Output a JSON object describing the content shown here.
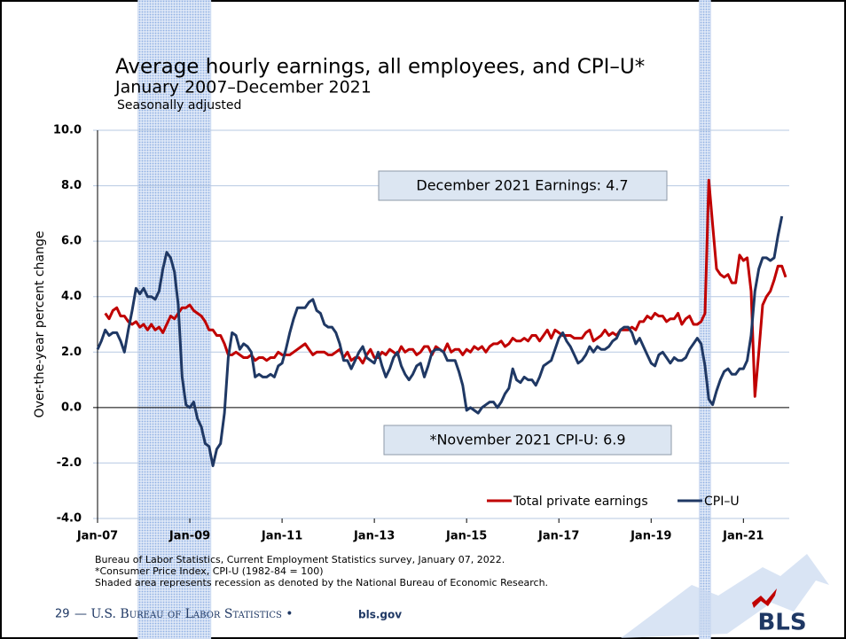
{
  "chart_data": {
    "type": "line",
    "title": "Average hourly earnings, all employees, and CPI–U*",
    "subtitle": "January 2007–December 2021",
    "note": "Seasonally adjusted",
    "y_label": "Over-the-year percent change",
    "categories": [
      "Jan-07",
      null,
      null,
      null,
      null,
      null,
      null,
      null,
      null,
      null,
      null,
      null,
      null,
      null,
      null,
      null,
      null,
      null,
      null,
      null,
      null,
      null,
      null,
      null,
      "Jan-09",
      null,
      null,
      null,
      null,
      null,
      null,
      null,
      null,
      null,
      null,
      null,
      null,
      null,
      null,
      null,
      null,
      null,
      null,
      null,
      null,
      null,
      null,
      null,
      "Jan-11",
      null,
      null,
      null,
      null,
      null,
      null,
      null,
      null,
      null,
      null,
      null,
      null,
      null,
      null,
      null,
      null,
      null,
      null,
      null,
      null,
      null,
      null,
      null,
      "Jan-13",
      null,
      null,
      null,
      null,
      null,
      null,
      null,
      null,
      null,
      null,
      null,
      null,
      null,
      null,
      null,
      null,
      null,
      null,
      null,
      null,
      null,
      null,
      null,
      "Jan-15",
      null,
      null,
      null,
      null,
      null,
      null,
      null,
      null,
      null,
      null,
      null,
      null,
      null,
      null,
      null,
      null,
      null,
      null,
      null,
      null,
      null,
      null,
      null,
      "Jan-17",
      null,
      null,
      null,
      null,
      null,
      null,
      null,
      null,
      null,
      null,
      null,
      null,
      null,
      null,
      null,
      null,
      null,
      null,
      null,
      null,
      null,
      null,
      null,
      "Jan-19",
      null,
      null,
      null,
      null,
      null,
      null,
      null,
      null,
      null,
      null,
      null,
      null,
      null,
      null,
      null,
      null,
      null,
      null,
      null,
      null,
      null,
      null,
      null,
      "Jan-21",
      null,
      null,
      null,
      null,
      null,
      null,
      null,
      null,
      null,
      null,
      null
    ],
    "series": [
      {
        "name": "Total private earnings",
        "color": "#c00000",
        "values": [
          null,
          null,
          3.4,
          3.2,
          3.5,
          3.6,
          3.3,
          3.3,
          3.1,
          3.0,
          3.1,
          2.9,
          3.0,
          2.8,
          3.0,
          2.8,
          2.9,
          2.7,
          3.0,
          3.3,
          3.2,
          3.4,
          3.6,
          3.6,
          3.7,
          3.5,
          3.4,
          3.3,
          3.1,
          2.8,
          2.8,
          2.6,
          2.6,
          2.3,
          1.9,
          1.9,
          2.0,
          1.9,
          1.8,
          1.8,
          1.9,
          1.7,
          1.8,
          1.8,
          1.7,
          1.8,
          1.8,
          2.0,
          1.9,
          1.9,
          1.9,
          2.0,
          2.1,
          2.2,
          2.3,
          2.1,
          1.9,
          2.0,
          2.0,
          2.0,
          1.9,
          1.9,
          2.0,
          2.1,
          1.8,
          2.0,
          1.7,
          1.8,
          1.8,
          1.6,
          1.9,
          2.1,
          1.8,
          1.8,
          2.0,
          1.9,
          2.1,
          2.0,
          1.9,
          2.2,
          2.0,
          2.1,
          2.1,
          1.9,
          2.0,
          2.2,
          2.2,
          1.9,
          2.2,
          2.1,
          2.0,
          2.3,
          2.0,
          2.1,
          2.1,
          1.9,
          2.1,
          2.0,
          2.2,
          2.1,
          2.2,
          2.0,
          2.2,
          2.3,
          2.3,
          2.4,
          2.2,
          2.3,
          2.5,
          2.4,
          2.4,
          2.5,
          2.4,
          2.6,
          2.6,
          2.4,
          2.6,
          2.8,
          2.5,
          2.8,
          2.7,
          2.6,
          2.6,
          2.6,
          2.5,
          2.5,
          2.5,
          2.7,
          2.8,
          2.4,
          2.5,
          2.6,
          2.8,
          2.6,
          2.7,
          2.6,
          2.8,
          2.8,
          2.8,
          2.9,
          2.8,
          3.1,
          3.1,
          3.3,
          3.2,
          3.4,
          3.3,
          3.3,
          3.1,
          3.2,
          3.2,
          3.4,
          3.0,
          3.2,
          3.3,
          3.0,
          3.0,
          3.1,
          3.4,
          8.2,
          6.6,
          5.0,
          4.8,
          4.7,
          4.8,
          4.5,
          4.5,
          5.5,
          5.3,
          5.4,
          4.2,
          0.4,
          2.0,
          3.7,
          4.0,
          4.2,
          4.6,
          5.1,
          5.1,
          4.7
        ]
      },
      {
        "name": "CPI–U",
        "color": "#1f3864",
        "values": [
          2.1,
          2.4,
          2.8,
          2.6,
          2.7,
          2.7,
          2.4,
          2.0,
          2.8,
          3.5,
          4.3,
          4.1,
          4.3,
          4.0,
          4.0,
          3.9,
          4.2,
          5.0,
          5.6,
          5.4,
          4.9,
          3.7,
          1.1,
          0.1,
          0.0,
          0.2,
          -0.4,
          -0.7,
          -1.3,
          -1.4,
          -2.1,
          -1.5,
          -1.3,
          -0.2,
          1.8,
          2.7,
          2.6,
          2.1,
          2.3,
          2.2,
          2.0,
          1.1,
          1.2,
          1.1,
          1.1,
          1.2,
          1.1,
          1.5,
          1.6,
          2.1,
          2.7,
          3.2,
          3.6,
          3.6,
          3.6,
          3.8,
          3.9,
          3.5,
          3.4,
          3.0,
          2.9,
          2.9,
          2.7,
          2.3,
          1.7,
          1.7,
          1.4,
          1.7,
          2.0,
          2.2,
          1.8,
          1.7,
          1.6,
          2.0,
          1.5,
          1.1,
          1.4,
          1.8,
          2.0,
          1.5,
          1.2,
          1.0,
          1.2,
          1.5,
          1.6,
          1.1,
          1.5,
          2.0,
          2.1,
          2.1,
          2.0,
          1.7,
          1.7,
          1.7,
          1.3,
          0.8,
          -0.1,
          0.0,
          -0.1,
          -0.2,
          0.0,
          0.1,
          0.2,
          0.2,
          0.0,
          0.2,
          0.5,
          0.7,
          1.4,
          1.0,
          0.9,
          1.1,
          1.0,
          1.0,
          0.8,
          1.1,
          1.5,
          1.6,
          1.7,
          2.1,
          2.5,
          2.7,
          2.4,
          2.2,
          1.9,
          1.6,
          1.7,
          1.9,
          2.2,
          2.0,
          2.2,
          2.1,
          2.1,
          2.2,
          2.4,
          2.5,
          2.8,
          2.9,
          2.9,
          2.7,
          2.3,
          2.5,
          2.2,
          1.9,
          1.6,
          1.5,
          1.9,
          2.0,
          1.8,
          1.6,
          1.8,
          1.7,
          1.7,
          1.8,
          2.1,
          2.3,
          2.5,
          2.3,
          1.5,
          0.3,
          0.1,
          0.6,
          1.0,
          1.3,
          1.4,
          1.2,
          1.2,
          1.4,
          1.4,
          1.7,
          2.6,
          4.2,
          5.0,
          5.4,
          5.4,
          5.3,
          5.4,
          6.2,
          6.9,
          null
        ]
      }
    ],
    "ylim": [
      -4,
      10
    ],
    "yticks": [
      {
        "value": -4,
        "label": "-4.0"
      },
      {
        "value": -2,
        "label": "-2.0"
      },
      {
        "value": 0,
        "label": "0.0"
      },
      {
        "value": 2,
        "label": "2.0"
      },
      {
        "value": 4,
        "label": "4.0"
      },
      {
        "value": 6,
        "label": "6.0"
      },
      {
        "value": 8,
        "label": "8.0"
      },
      {
        "value": 10,
        "label": "10.0"
      }
    ],
    "grid": true,
    "legend": "lower right",
    "recessions": [
      {
        "start": 11,
        "end": 29
      },
      {
        "start": 157,
        "end": 159
      }
    ],
    "recession_color": "#b4c8ea",
    "annotations": [
      "December 2021 Earnings: 4.7",
      "*November 2021 CPI-U: 6.9"
    ]
  },
  "footer": {
    "sources": [
      "Bureau of Labor Statistics, Current Employment Statistics survey, January 07, 2022.",
      "*Consumer Price Index, CPI-U (1982-84 = 100)",
      "Shaded area represents recession as denoted by the National Bureau of Economic Research."
    ],
    "page": "29",
    "agency": "— U.S. Bureau of Labor Statistics •",
    "site": "bls.gov",
    "logo": "BLS"
  }
}
